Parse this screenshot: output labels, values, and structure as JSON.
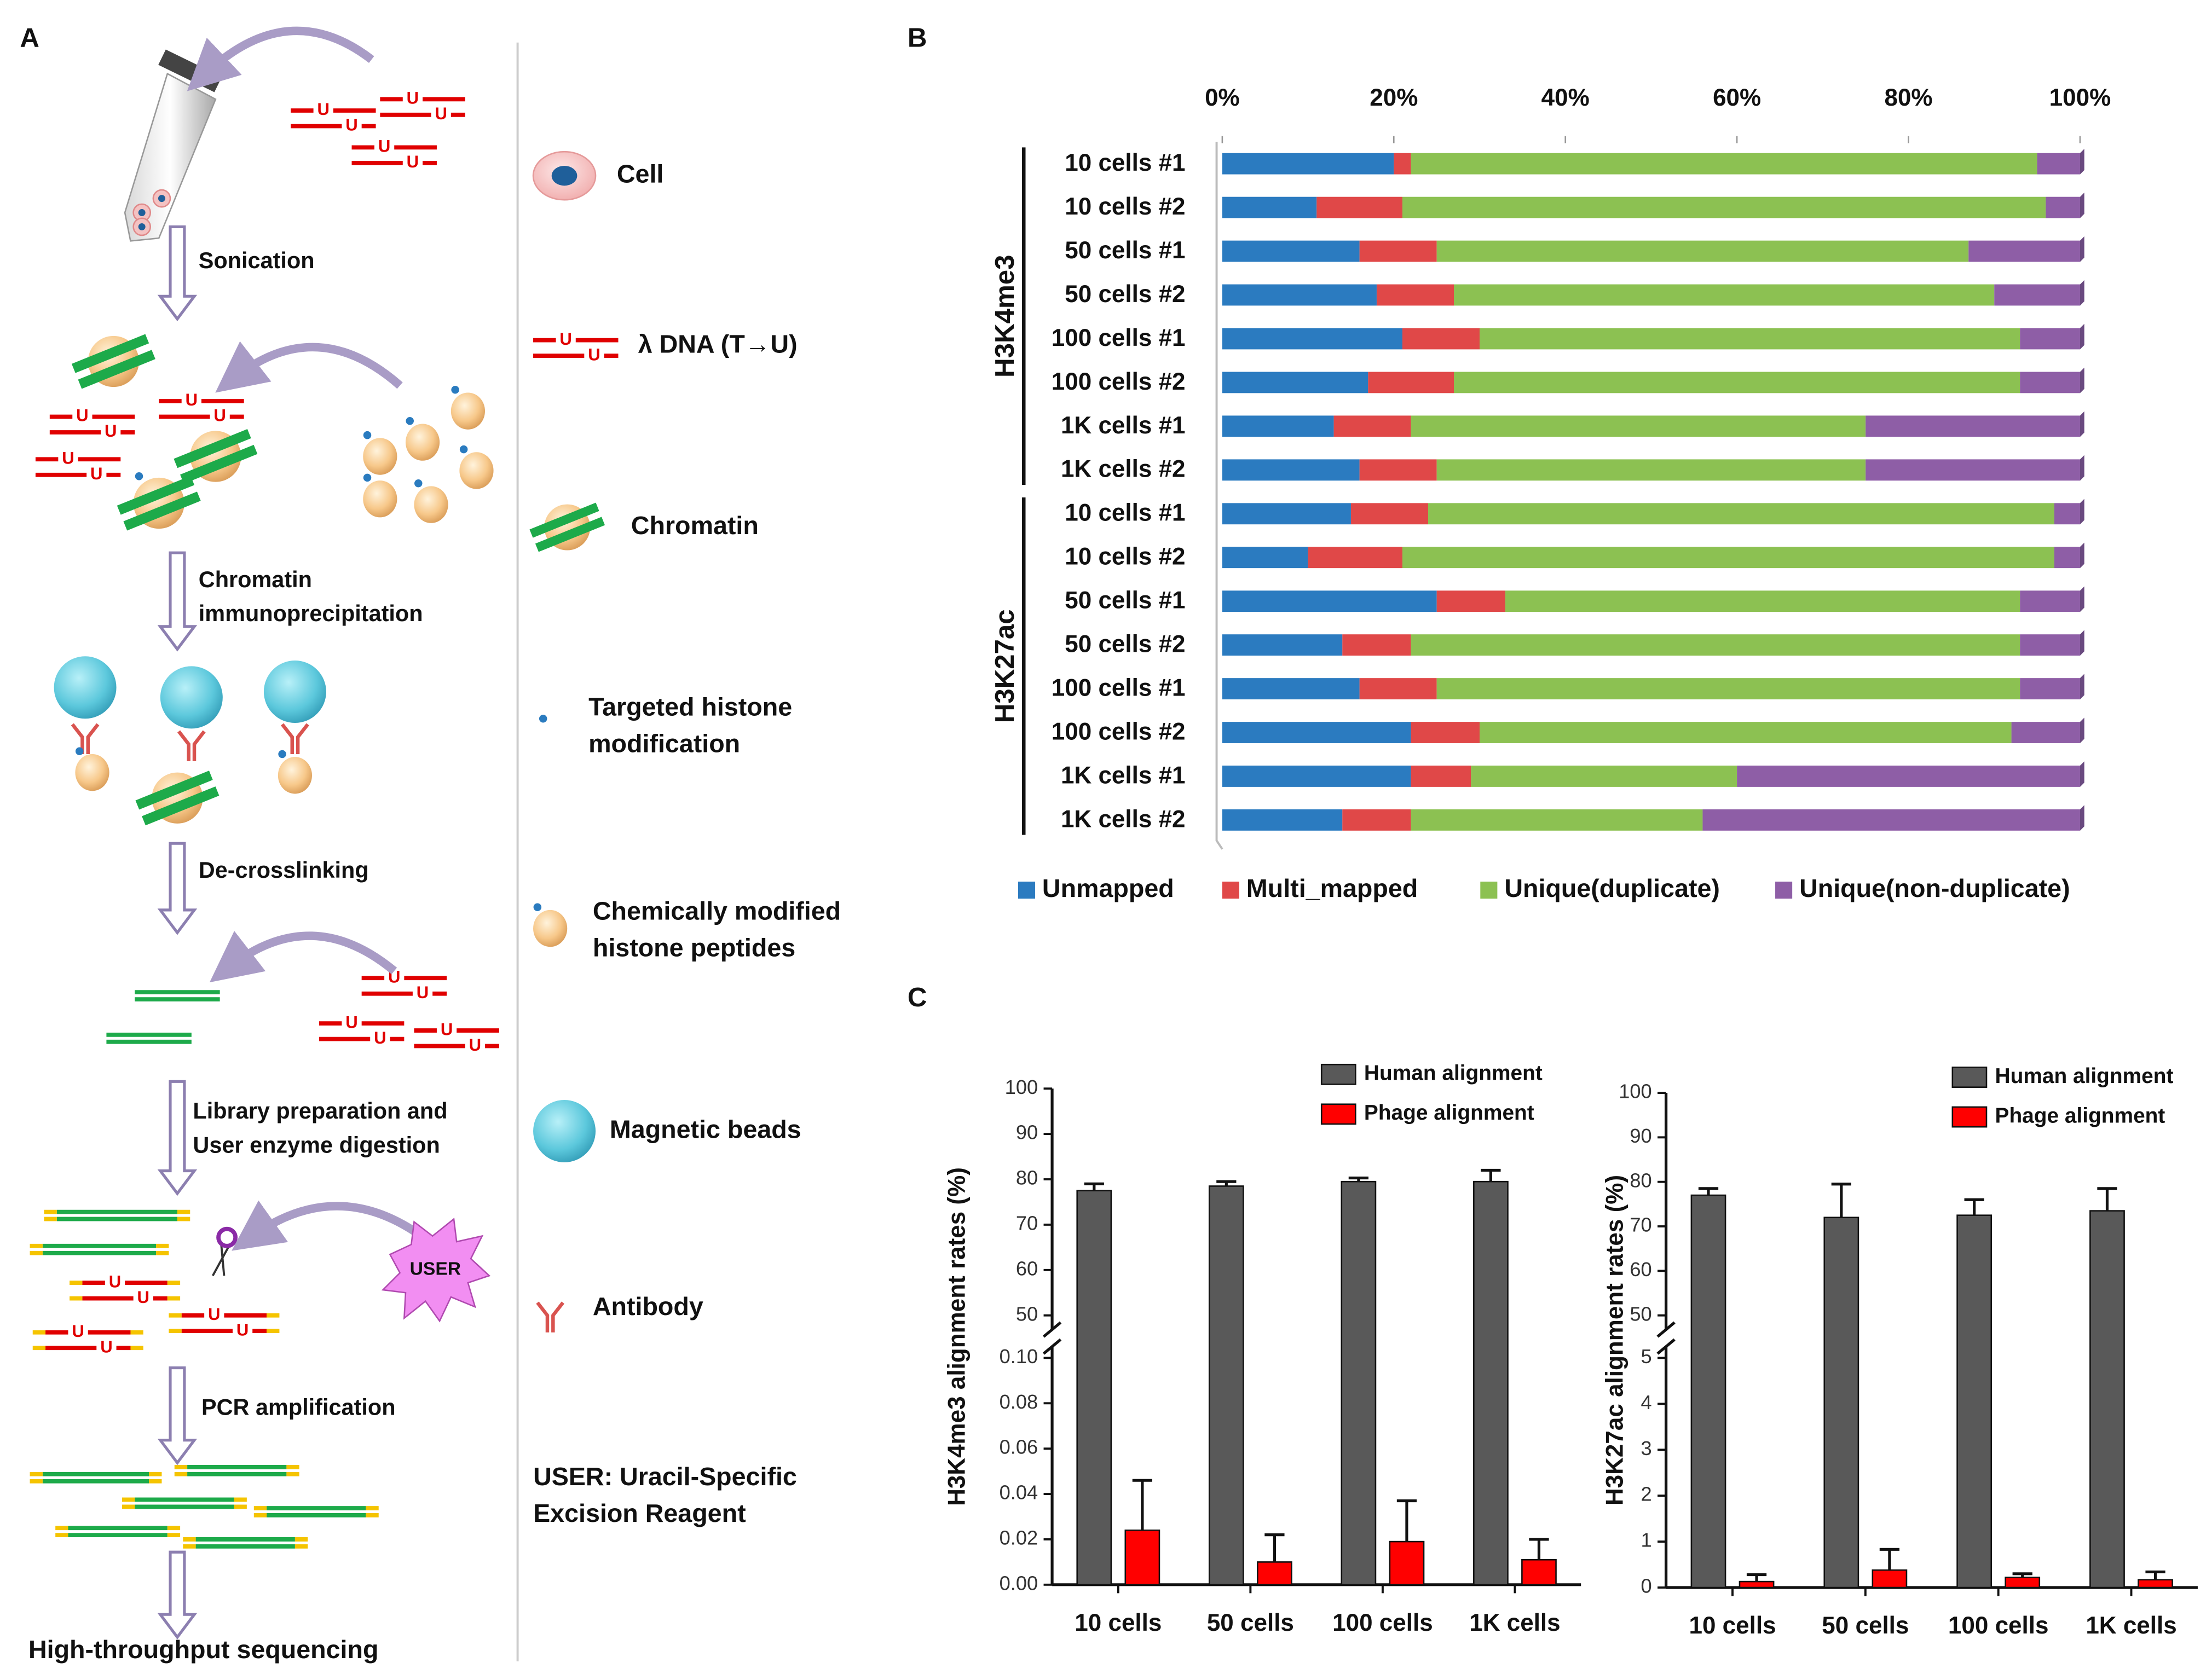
{
  "panel_labels": [
    "A",
    "B",
    "C"
  ],
  "diagram": {
    "steps": [
      [
        "Sonication"
      ],
      [
        "Chromatin",
        "immunoprecipitation"
      ],
      [
        "De-crosslinking"
      ],
      [
        "Library preparation and",
        "User enzyme digestion"
      ],
      [
        "PCR amplification"
      ]
    ],
    "final_step": "High-throughput sequencing",
    "uracil_mark": "U",
    "enzyme_label": "USER",
    "legend": [
      [
        "Cell"
      ],
      [
        "λ DNA (T→U)"
      ],
      [
        "Chromatin"
      ],
      [
        "Targeted histone",
        "modification"
      ],
      [
        "Chemically modified",
        "histone peptides"
      ],
      [
        "Magnetic beads"
      ],
      [
        "Antibody"
      ],
      [
        "USER: Uracil-Specific",
        "Excision Reagent"
      ]
    ]
  },
  "chart_data": [
    {
      "type": "bar",
      "orientation": "horizontal",
      "stacked": true,
      "categories": [
        "10 cells #1",
        "10 cells #2",
        "50 cells #1",
        "50 cells #2",
        "100 cells #1",
        "100 cells #2",
        "1K cells #1",
        "1K cells #2",
        "10 cells #1",
        "10 cells #2",
        "50 cells #1",
        "50 cells #2",
        "100 cells #1",
        "100 cells #2",
        "1K cells #1",
        "1K cells #2"
      ],
      "category_groups": [
        "H3K4me3",
        "H3K4me3",
        "H3K4me3",
        "H3K4me3",
        "H3K4me3",
        "H3K4me3",
        "H3K4me3",
        "H3K4me3",
        "H3K27ac",
        "H3K27ac",
        "H3K27ac",
        "H3K27ac",
        "H3K27ac",
        "H3K27ac",
        "H3K27ac",
        "H3K27ac"
      ],
      "series": [
        {
          "name": "Unmapped",
          "color": "#2b7bc0",
          "values": [
            20,
            11,
            16,
            18,
            21,
            17,
            13,
            16,
            15,
            10,
            25,
            14,
            16,
            22,
            22,
            14
          ]
        },
        {
          "name": "Multi_mapped",
          "color": "#e04848",
          "values": [
            2,
            10,
            9,
            9,
            9,
            10,
            9,
            9,
            9,
            11,
            8,
            8,
            9,
            8,
            7,
            8
          ]
        },
        {
          "name": "Unique(duplicate)",
          "color": "#8cc152",
          "values": [
            73,
            75,
            62,
            63,
            63,
            66,
            53,
            50,
            73,
            76,
            60,
            71,
            68,
            62,
            31,
            34
          ]
        },
        {
          "name": "Unique(non-duplicate)",
          "color": "#8e5ea6",
          "values": [
            5,
            4,
            13,
            10,
            7,
            7,
            25,
            25,
            3,
            3,
            7,
            7,
            7,
            8,
            40,
            44
          ]
        }
      ],
      "xlim": [
        0,
        100
      ],
      "xticks": [
        {
          "value": 0,
          "label": "0%"
        },
        {
          "value": 20,
          "label": "20%"
        },
        {
          "value": 40,
          "label": "40%"
        },
        {
          "value": 60,
          "label": "60%"
        },
        {
          "value": 80,
          "label": "80%"
        },
        {
          "value": 100,
          "label": "100%"
        }
      ],
      "legend": "bottom"
    },
    {
      "type": "bar",
      "y_label": "H3K4me3 alignment rates (%)",
      "categories": [
        "10 cells",
        "50 cells",
        "100 cells",
        "1K cells"
      ],
      "series": [
        {
          "name": "Human alignment",
          "color": "#595959",
          "values": [
            77.5,
            78.5,
            79.5,
            79.5
          ],
          "errors": [
            1.5,
            1,
            0.8,
            2.5
          ]
        },
        {
          "name": "Phage alignment",
          "color": "#ff0000",
          "values": [
            0.024,
            0.01,
            0.019,
            0.011
          ],
          "errors": [
            0.022,
            0.012,
            0.018,
            0.009
          ]
        }
      ],
      "ylim": [
        0,
        0.1
      ],
      "yticks": [
        {
          "value": 0,
          "label": "0.00"
        },
        {
          "value": 0.02,
          "label": "0.02"
        },
        {
          "value": 0.04,
          "label": "0.04"
        },
        {
          "value": 0.06,
          "label": "0.06"
        },
        {
          "value": 0.08,
          "label": "0.08"
        },
        {
          "value": 0.1,
          "label": "0.10"
        }
      ],
      "upper_ylim": [
        50,
        100
      ],
      "upper_yticks": [
        50,
        60,
        70,
        80,
        90,
        100
      ],
      "legend": "upper right"
    },
    {
      "type": "bar",
      "y_label": "H3K27ac alignment rates (%)",
      "categories": [
        "10 cells",
        "50 cells",
        "100 cells",
        "1K cells"
      ],
      "series": [
        {
          "name": "Human alignment",
          "color": "#595959",
          "values": [
            77,
            72,
            72.5,
            73.5
          ],
          "errors": [
            1.5,
            7.5,
            3.5,
            5
          ]
        },
        {
          "name": "Phage alignment",
          "color": "#ff0000",
          "values": [
            0.13,
            0.38,
            0.22,
            0.17
          ],
          "errors": [
            0.15,
            0.45,
            0.08,
            0.17
          ]
        }
      ],
      "ylim": [
        0,
        5
      ],
      "yticks": [
        0,
        1,
        2,
        3,
        4,
        5
      ],
      "upper_ylim": [
        50,
        100
      ],
      "upper_yticks": [
        50,
        60,
        70,
        80,
        90,
        100
      ],
      "legend": "upper right"
    }
  ]
}
